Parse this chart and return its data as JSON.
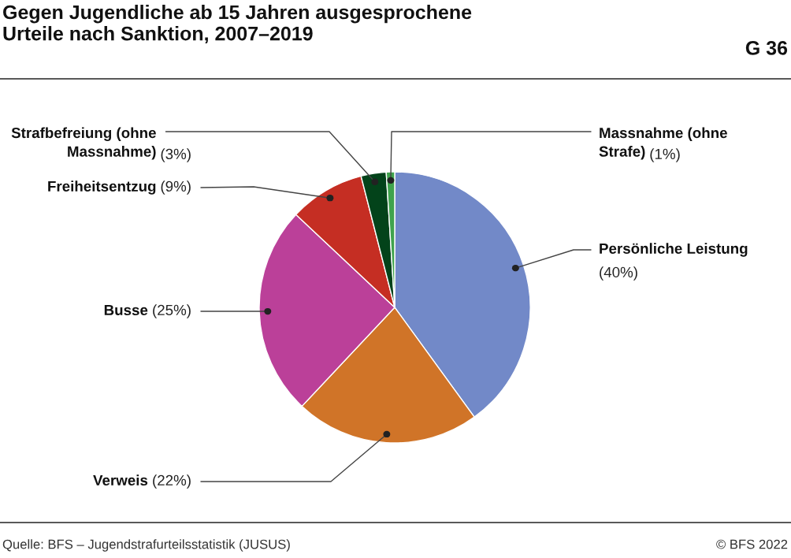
{
  "chart_data": {
    "type": "pie",
    "title": "Gegen Jugendliche ab 15 Jahren ausgesprochene\nUrteile nach Sanktion, 2007–2019",
    "subtitle": "G 36",
    "categories": [
      "Persönliche Leistung",
      "Verweis",
      "Busse",
      "Freiheitsentzug",
      "Strafbefreiung (ohne\nMassnahme)",
      "Massnahme (ohne\nStrafe)"
    ],
    "values": [
      40,
      22,
      25,
      9,
      3,
      1
    ],
    "colors": [
      "#7289c8",
      "#d07428",
      "#bb4099",
      "#c52e23",
      "#03431a",
      "#3fa34d"
    ],
    "value_labels": [
      "(40%)",
      "(22%)",
      "(25%)",
      "(9%)",
      "(3%)",
      "(1%)"
    ],
    "legend": false,
    "annotations": [
      "Quelle: BFS – Jugendstrafurteilsstatistik (JUSUS)",
      "© BFS 2022"
    ]
  }
}
